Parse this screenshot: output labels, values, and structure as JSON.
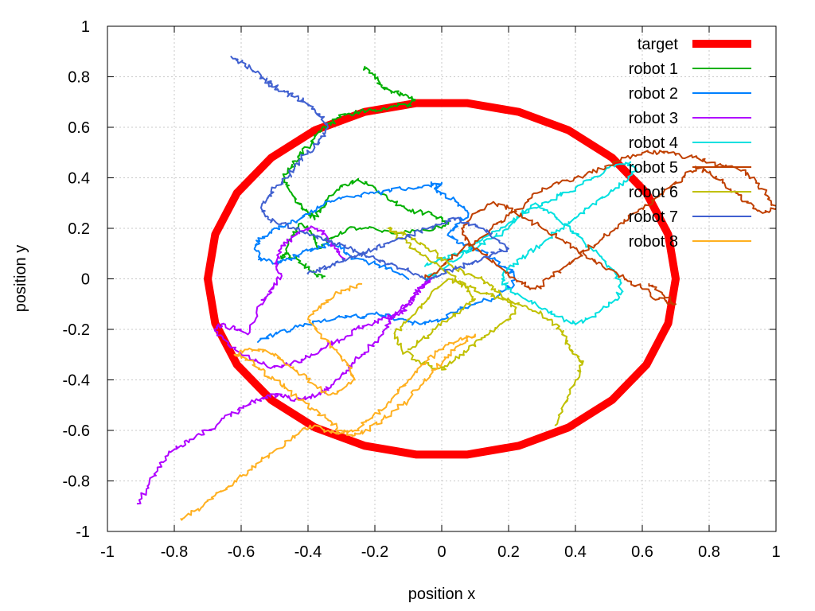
{
  "chart_data": {
    "type": "line",
    "xlabel": "position x",
    "ylabel": "position y",
    "xlim": [
      -1,
      1
    ],
    "ylim": [
      -1,
      1
    ],
    "x_ticks": [
      "-1",
      "-0.8",
      "-0.6",
      "-0.4",
      "-0.2",
      "0",
      "0.2",
      "0.4",
      "0.6",
      "0.8",
      "1"
    ],
    "y_ticks": [
      "-1",
      "-0.8",
      "-0.6",
      "-0.4",
      "-0.2",
      "0",
      "0.2",
      "0.4",
      "0.6",
      "0.8",
      "1"
    ],
    "grid": true,
    "legend_position": "top-right",
    "series": [
      {
        "name": "target",
        "color": "#ff0000",
        "shape": "ellipse",
        "x": [
          0.7,
          0.6776,
          0.6124,
          0.5101,
          0.3793,
          0.2308,
          0.0754,
          -0.0754,
          -0.2308,
          -0.3793,
          -0.5101,
          -0.6124,
          -0.6776,
          -0.7,
          -0.6776,
          -0.6124,
          -0.5101,
          -0.3793,
          -0.2308,
          -0.0754,
          0.0754,
          0.2308,
          0.3793,
          0.5101,
          0.6124,
          0.6776,
          0.7
        ],
        "y": [
          0.0,
          0.1756,
          0.34,
          0.4794,
          0.5883,
          0.6609,
          0.6959,
          0.6959,
          0.6609,
          0.5883,
          0.4794,
          0.34,
          0.1756,
          0.0,
          -0.1756,
          -0.34,
          -0.4794,
          -0.5883,
          -0.6609,
          -0.6959,
          -0.6959,
          -0.6609,
          -0.5883,
          -0.4794,
          -0.34,
          -0.1756,
          0.0
        ]
      },
      {
        "name": "robot 1",
        "color": "#00b000",
        "x": [
          -0.23,
          -0.2,
          -0.18,
          -0.15,
          -0.12,
          -0.1,
          -0.08,
          -0.1,
          -0.15,
          -0.2,
          -0.25,
          -0.3,
          -0.33,
          -0.36,
          -0.38,
          -0.4,
          -0.43,
          -0.45,
          -0.47,
          -0.46,
          -0.44,
          -0.42,
          -0.4,
          -0.38,
          -0.36,
          -0.33,
          -0.3,
          -0.25,
          -0.2,
          -0.15,
          -0.1,
          -0.05,
          0.0,
          0.02,
          -0.02,
          -0.08,
          -0.15,
          -0.22,
          -0.28,
          -0.33,
          -0.37,
          -0.39,
          -0.42,
          -0.45,
          -0.48,
          -0.46,
          -0.42,
          -0.38,
          -0.35
        ],
        "y": [
          0.84,
          0.8,
          0.76,
          0.74,
          0.73,
          0.72,
          0.71,
          0.69,
          0.68,
          0.67,
          0.66,
          0.65,
          0.62,
          0.59,
          0.56,
          0.52,
          0.48,
          0.44,
          0.4,
          0.36,
          0.32,
          0.28,
          0.26,
          0.24,
          0.28,
          0.33,
          0.37,
          0.39,
          0.36,
          0.31,
          0.27,
          0.26,
          0.24,
          0.22,
          0.2,
          0.19,
          0.18,
          0.2,
          0.2,
          0.16,
          0.12,
          0.18,
          0.22,
          0.16,
          0.08,
          0.1,
          0.06,
          0.02,
          0.01
        ]
      },
      {
        "name": "robot 2",
        "color": "#0080ff",
        "x": [
          -0.55,
          -0.5,
          -0.45,
          -0.4,
          -0.35,
          -0.3,
          -0.25,
          -0.2,
          -0.15,
          -0.1,
          -0.05,
          0.0,
          0.05,
          0.1,
          0.15,
          0.2,
          0.22,
          0.2,
          0.15,
          0.1,
          0.05,
          0.02,
          0.05,
          0.08,
          0.05,
          0.0,
          -0.02,
          0.0,
          -0.05,
          -0.1,
          -0.15,
          -0.2,
          -0.25,
          -0.3,
          -0.35,
          -0.38,
          -0.42,
          -0.46,
          -0.5,
          -0.54,
          -0.56,
          -0.54,
          -0.5,
          -0.46,
          -0.42,
          -0.38,
          -0.34,
          -0.3,
          -0.26,
          -0.2,
          -0.15,
          -0.1
        ],
        "y": [
          -0.25,
          -0.22,
          -0.2,
          -0.18,
          -0.16,
          -0.15,
          -0.15,
          -0.14,
          -0.15,
          -0.17,
          -0.18,
          -0.16,
          -0.12,
          -0.1,
          -0.08,
          -0.04,
          0.0,
          0.04,
          0.08,
          0.12,
          0.14,
          0.18,
          0.22,
          0.26,
          0.3,
          0.34,
          0.36,
          0.38,
          0.37,
          0.36,
          0.35,
          0.34,
          0.33,
          0.32,
          0.3,
          0.27,
          0.24,
          0.22,
          0.2,
          0.16,
          0.12,
          0.08,
          0.06,
          0.08,
          0.1,
          0.12,
          0.14,
          0.12,
          0.08,
          0.06,
          0.04,
          0.0
        ]
      },
      {
        "name": "robot 3",
        "color": "#b000ff",
        "x": [
          -0.91,
          -0.88,
          -0.85,
          -0.82,
          -0.78,
          -0.74,
          -0.7,
          -0.66,
          -0.62,
          -0.58,
          -0.55,
          -0.52,
          -0.48,
          -0.44,
          -0.4,
          -0.36,
          -0.33,
          -0.3,
          -0.27,
          -0.24,
          -0.2,
          -0.17,
          -0.15,
          -0.12,
          -0.1,
          -0.08,
          -0.05,
          -0.03,
          -0.05,
          -0.08,
          -0.1,
          -0.14,
          -0.18,
          -0.22,
          -0.26,
          -0.3,
          -0.34,
          -0.38,
          -0.42,
          -0.46,
          -0.5,
          -0.55,
          -0.6,
          -0.64,
          -0.68,
          -0.66,
          -0.62,
          -0.58,
          -0.54,
          -0.52,
          -0.5,
          -0.48,
          -0.5,
          -0.48,
          -0.45,
          -0.42,
          -0.38,
          -0.35,
          -0.32,
          -0.29
        ],
        "y": [
          -0.89,
          -0.82,
          -0.76,
          -0.7,
          -0.66,
          -0.63,
          -0.6,
          -0.56,
          -0.53,
          -0.5,
          -0.48,
          -0.46,
          -0.46,
          -0.48,
          -0.47,
          -0.45,
          -0.42,
          -0.38,
          -0.34,
          -0.3,
          -0.25,
          -0.2,
          -0.16,
          -0.13,
          -0.1,
          -0.06,
          -0.02,
          0.0,
          -0.02,
          -0.06,
          -0.1,
          -0.14,
          -0.16,
          -0.18,
          -0.2,
          -0.24,
          -0.26,
          -0.3,
          -0.32,
          -0.34,
          -0.35,
          -0.33,
          -0.3,
          -0.26,
          -0.2,
          -0.18,
          -0.2,
          -0.22,
          -0.1,
          -0.06,
          -0.02,
          0.02,
          0.06,
          0.12,
          0.16,
          0.19,
          0.2,
          0.18,
          0.12,
          0.08
        ]
      },
      {
        "name": "robot 4",
        "color": "#00e0e0",
        "x": [
          -0.05,
          0.0,
          0.05,
          0.1,
          0.15,
          0.2,
          0.25,
          0.3,
          0.35,
          0.4,
          0.45,
          0.5,
          0.55,
          0.58,
          0.56,
          0.52,
          0.48,
          0.44,
          0.4,
          0.36,
          0.32,
          0.28,
          0.24,
          0.2,
          0.18,
          0.2,
          0.25,
          0.3,
          0.35,
          0.4,
          0.45,
          0.5,
          0.54,
          0.52,
          0.48,
          0.44,
          0.4,
          0.36,
          0.32,
          0.28,
          0.24,
          0.2,
          0.15,
          0.1,
          0.05,
          0.0,
          -0.05
        ],
        "y": [
          0.0,
          0.04,
          0.08,
          0.14,
          0.18,
          0.22,
          0.26,
          0.3,
          0.33,
          0.36,
          0.4,
          0.44,
          0.46,
          0.44,
          0.4,
          0.36,
          0.32,
          0.28,
          0.24,
          0.2,
          0.16,
          0.12,
          0.08,
          0.04,
          0.0,
          -0.04,
          -0.08,
          -0.12,
          -0.15,
          -0.18,
          -0.15,
          -0.1,
          -0.05,
          0.02,
          0.08,
          0.12,
          0.18,
          0.22,
          0.26,
          0.3,
          0.26,
          0.2,
          0.16,
          0.12,
          0.1,
          0.08,
          0.05
        ]
      },
      {
        "name": "robot 5",
        "color": "#c04000",
        "x": [
          -0.05,
          0.0,
          0.05,
          0.1,
          0.15,
          0.2,
          0.25,
          0.3,
          0.35,
          0.4,
          0.45,
          0.5,
          0.55,
          0.6,
          0.65,
          0.7,
          0.75,
          0.8,
          0.85,
          0.9,
          0.94,
          0.98,
          1.0,
          0.96,
          0.92,
          0.88,
          0.84,
          0.8,
          0.76,
          0.72,
          0.68,
          0.64,
          0.6,
          0.56,
          0.52,
          0.48,
          0.44,
          0.4,
          0.36,
          0.32,
          0.28,
          0.24,
          0.2,
          0.16,
          0.12,
          0.08,
          0.06,
          0.1,
          0.15,
          0.2,
          0.25,
          0.3,
          0.35,
          0.4,
          0.45,
          0.5,
          0.55,
          0.6,
          0.65,
          0.7,
          0.66,
          0.62
        ],
        "y": [
          0.0,
          0.05,
          0.1,
          0.15,
          0.2,
          0.25,
          0.3,
          0.35,
          0.38,
          0.4,
          0.42,
          0.45,
          0.48,
          0.5,
          0.5,
          0.49,
          0.48,
          0.46,
          0.45,
          0.43,
          0.38,
          0.32,
          0.28,
          0.26,
          0.3,
          0.34,
          0.38,
          0.42,
          0.44,
          0.4,
          0.36,
          0.32,
          0.28,
          0.24,
          0.2,
          0.16,
          0.12,
          0.08,
          0.04,
          0.0,
          -0.04,
          -0.02,
          0.02,
          0.06,
          0.1,
          0.14,
          0.2,
          0.26,
          0.3,
          0.28,
          0.24,
          0.2,
          0.16,
          0.12,
          0.08,
          0.04,
          0.0,
          -0.04,
          -0.08,
          -0.1,
          -0.06,
          -0.02
        ]
      },
      {
        "name": "robot 6",
        "color": "#c0c000",
        "x": [
          0.34,
          0.36,
          0.38,
          0.4,
          0.42,
          0.4,
          0.38,
          0.36,
          0.34,
          0.3,
          0.26,
          0.22,
          0.18,
          0.14,
          0.1,
          0.06,
          0.02,
          -0.02,
          -0.06,
          -0.1,
          -0.14,
          -0.12,
          -0.08,
          -0.04,
          0.0,
          0.04,
          0.08,
          0.12,
          0.16,
          0.2,
          0.22,
          0.2,
          0.16,
          0.12,
          0.08,
          0.04,
          0.0,
          -0.04,
          -0.08,
          -0.12,
          -0.16,
          -0.12,
          -0.08,
          -0.04,
          0.0,
          0.04,
          0.08,
          0.1,
          0.06,
          0.02,
          -0.02,
          -0.06,
          -0.1
        ],
        "y": [
          -0.58,
          -0.52,
          -0.46,
          -0.4,
          -0.34,
          -0.3,
          -0.26,
          -0.22,
          -0.18,
          -0.14,
          -0.12,
          -0.1,
          -0.08,
          -0.06,
          -0.04,
          -0.02,
          0.0,
          -0.04,
          -0.1,
          -0.16,
          -0.22,
          -0.28,
          -0.32,
          -0.34,
          -0.36,
          -0.32,
          -0.28,
          -0.24,
          -0.2,
          -0.16,
          -0.12,
          -0.08,
          -0.04,
          0.0,
          0.02,
          0.04,
          0.08,
          0.12,
          0.16,
          0.18,
          0.2,
          0.16,
          0.12,
          0.08,
          0.04,
          0.0,
          -0.04,
          -0.08,
          -0.12,
          -0.16,
          -0.2,
          -0.24,
          -0.28
        ]
      },
      {
        "name": "robot 7",
        "color": "#4060d0",
        "x": [
          -0.63,
          -0.6,
          -0.57,
          -0.54,
          -0.52,
          -0.5,
          -0.47,
          -0.44,
          -0.41,
          -0.38,
          -0.36,
          -0.34,
          -0.36,
          -0.38,
          -0.42,
          -0.44,
          -0.46,
          -0.5,
          -0.52,
          -0.54,
          -0.52,
          -0.48,
          -0.44,
          -0.4,
          -0.36,
          -0.32,
          -0.28,
          -0.24,
          -0.2,
          -0.16,
          -0.12,
          -0.08,
          -0.04,
          0.0,
          0.04,
          0.08,
          0.12,
          0.16,
          0.2,
          0.16,
          0.12,
          0.08,
          0.04,
          0.0,
          -0.04,
          -0.08,
          -0.12,
          -0.16,
          -0.2,
          -0.24,
          -0.28,
          -0.32,
          -0.36,
          -0.4
        ],
        "y": [
          0.88,
          0.86,
          0.83,
          0.8,
          0.78,
          0.76,
          0.74,
          0.72,
          0.7,
          0.67,
          0.64,
          0.6,
          0.56,
          0.52,
          0.48,
          0.44,
          0.4,
          0.36,
          0.32,
          0.28,
          0.24,
          0.22,
          0.2,
          0.18,
          0.16,
          0.14,
          0.12,
          0.1,
          0.08,
          0.06,
          0.04,
          0.02,
          0.0,
          0.02,
          0.04,
          0.06,
          0.08,
          0.1,
          0.12,
          0.16,
          0.2,
          0.22,
          0.24,
          0.22,
          0.2,
          0.18,
          0.16,
          0.14,
          0.12,
          0.1,
          0.08,
          0.06,
          0.04,
          0.02
        ]
      },
      {
        "name": "robot 8",
        "color": "#ffb020",
        "x": [
          -0.78,
          -0.74,
          -0.7,
          -0.66,
          -0.62,
          -0.58,
          -0.54,
          -0.5,
          -0.46,
          -0.42,
          -0.38,
          -0.34,
          -0.3,
          -0.26,
          -0.22,
          -0.18,
          -0.14,
          -0.1,
          -0.06,
          -0.02,
          0.02,
          0.06,
          0.1,
          0.06,
          0.02,
          -0.02,
          -0.06,
          -0.1,
          -0.14,
          -0.18,
          -0.22,
          -0.26,
          -0.3,
          -0.34,
          -0.38,
          -0.42,
          -0.46,
          -0.5,
          -0.54,
          -0.58,
          -0.62,
          -0.58,
          -0.54,
          -0.5,
          -0.46,
          -0.42,
          -0.38,
          -0.34,
          -0.3,
          -0.26,
          -0.28,
          -0.32,
          -0.36,
          -0.4,
          -0.36,
          -0.32,
          -0.28,
          -0.24
        ],
        "y": [
          -0.95,
          -0.92,
          -0.88,
          -0.84,
          -0.8,
          -0.76,
          -0.72,
          -0.68,
          -0.64,
          -0.6,
          -0.58,
          -0.6,
          -0.61,
          -0.6,
          -0.56,
          -0.52,
          -0.46,
          -0.4,
          -0.34,
          -0.3,
          -0.26,
          -0.24,
          -0.22,
          -0.26,
          -0.3,
          -0.36,
          -0.42,
          -0.48,
          -0.52,
          -0.56,
          -0.6,
          -0.62,
          -0.6,
          -0.56,
          -0.52,
          -0.48,
          -0.44,
          -0.4,
          -0.36,
          -0.32,
          -0.3,
          -0.28,
          -0.28,
          -0.3,
          -0.34,
          -0.38,
          -0.42,
          -0.46,
          -0.44,
          -0.4,
          -0.34,
          -0.28,
          -0.22,
          -0.16,
          -0.1,
          -0.06,
          -0.04,
          -0.02
        ]
      }
    ]
  }
}
